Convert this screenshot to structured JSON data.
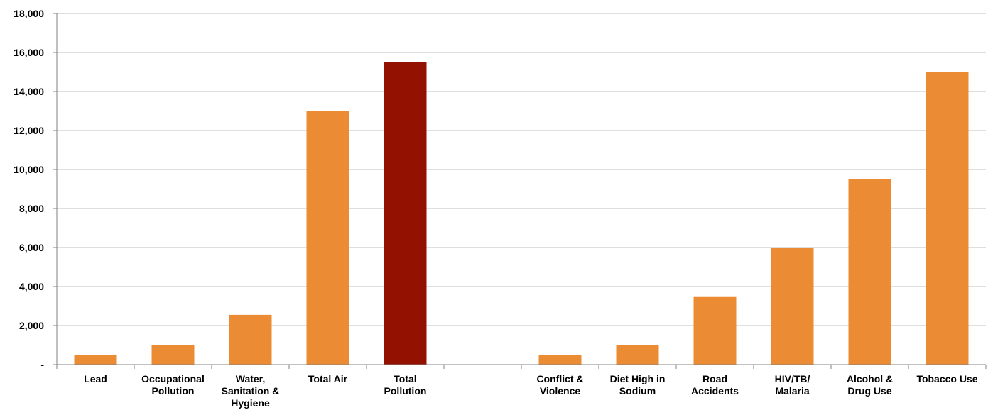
{
  "chart_data": {
    "type": "bar",
    "categories": [
      [
        "Lead"
      ],
      [
        "Occupational",
        "Pollution"
      ],
      [
        "Water,",
        "Sanitation &",
        "Hygiene"
      ],
      [
        "Total Air"
      ],
      [
        "Total",
        "Pollution"
      ],
      [],
      [
        "Conflict &",
        "Violence"
      ],
      [
        "Diet High in",
        "Sodium"
      ],
      [
        "Road",
        "Accidents"
      ],
      [
        "HIV/TB/",
        "Malaria"
      ],
      [
        "Alcohol &",
        "Drug Use"
      ],
      [
        "Tobacco Use"
      ]
    ],
    "values": [
      500,
      1000,
      2550,
      13000,
      15500,
      null,
      500,
      1000,
      3500,
      6000,
      9500,
      15000
    ],
    "highlight_index": 4,
    "colors": {
      "bar": "#EB8C35",
      "highlight": "#921100",
      "grid": "#BFBFBF",
      "axis": "#808080"
    },
    "yticks": [
      "-",
      "2,000",
      "4,000",
      "6,000",
      "8,000",
      "10,000",
      "12,000",
      "14,000",
      "16,000",
      "18,000"
    ],
    "ylim": [
      0,
      18000
    ],
    "grid": true,
    "legend": "none",
    "title": "",
    "xlabel": "",
    "ylabel": ""
  }
}
